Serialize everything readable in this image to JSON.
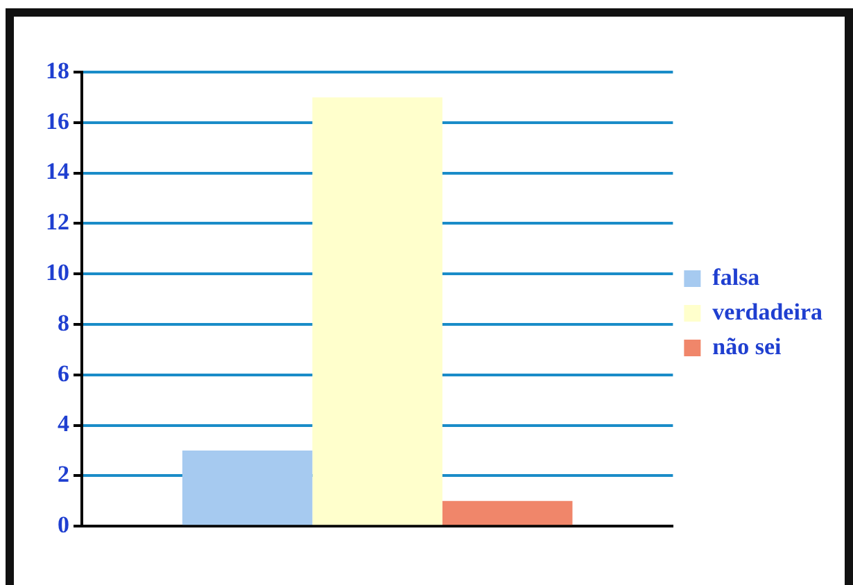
{
  "chart_data": {
    "type": "bar",
    "categories": [
      null
    ],
    "series": [
      {
        "name": "falsa",
        "color": "#a6caf0",
        "values": [
          3
        ]
      },
      {
        "name": "verdadeira",
        "color": "#ffffcc",
        "values": [
          17
        ]
      },
      {
        "name": "não sei",
        "color": "#f0866a",
        "values": [
          1
        ]
      }
    ],
    "ylim": [
      0,
      18
    ],
    "yticks": [
      0,
      2,
      4,
      6,
      8,
      10,
      12,
      14,
      16,
      18
    ],
    "grid": "y",
    "legend": "right"
  }
}
